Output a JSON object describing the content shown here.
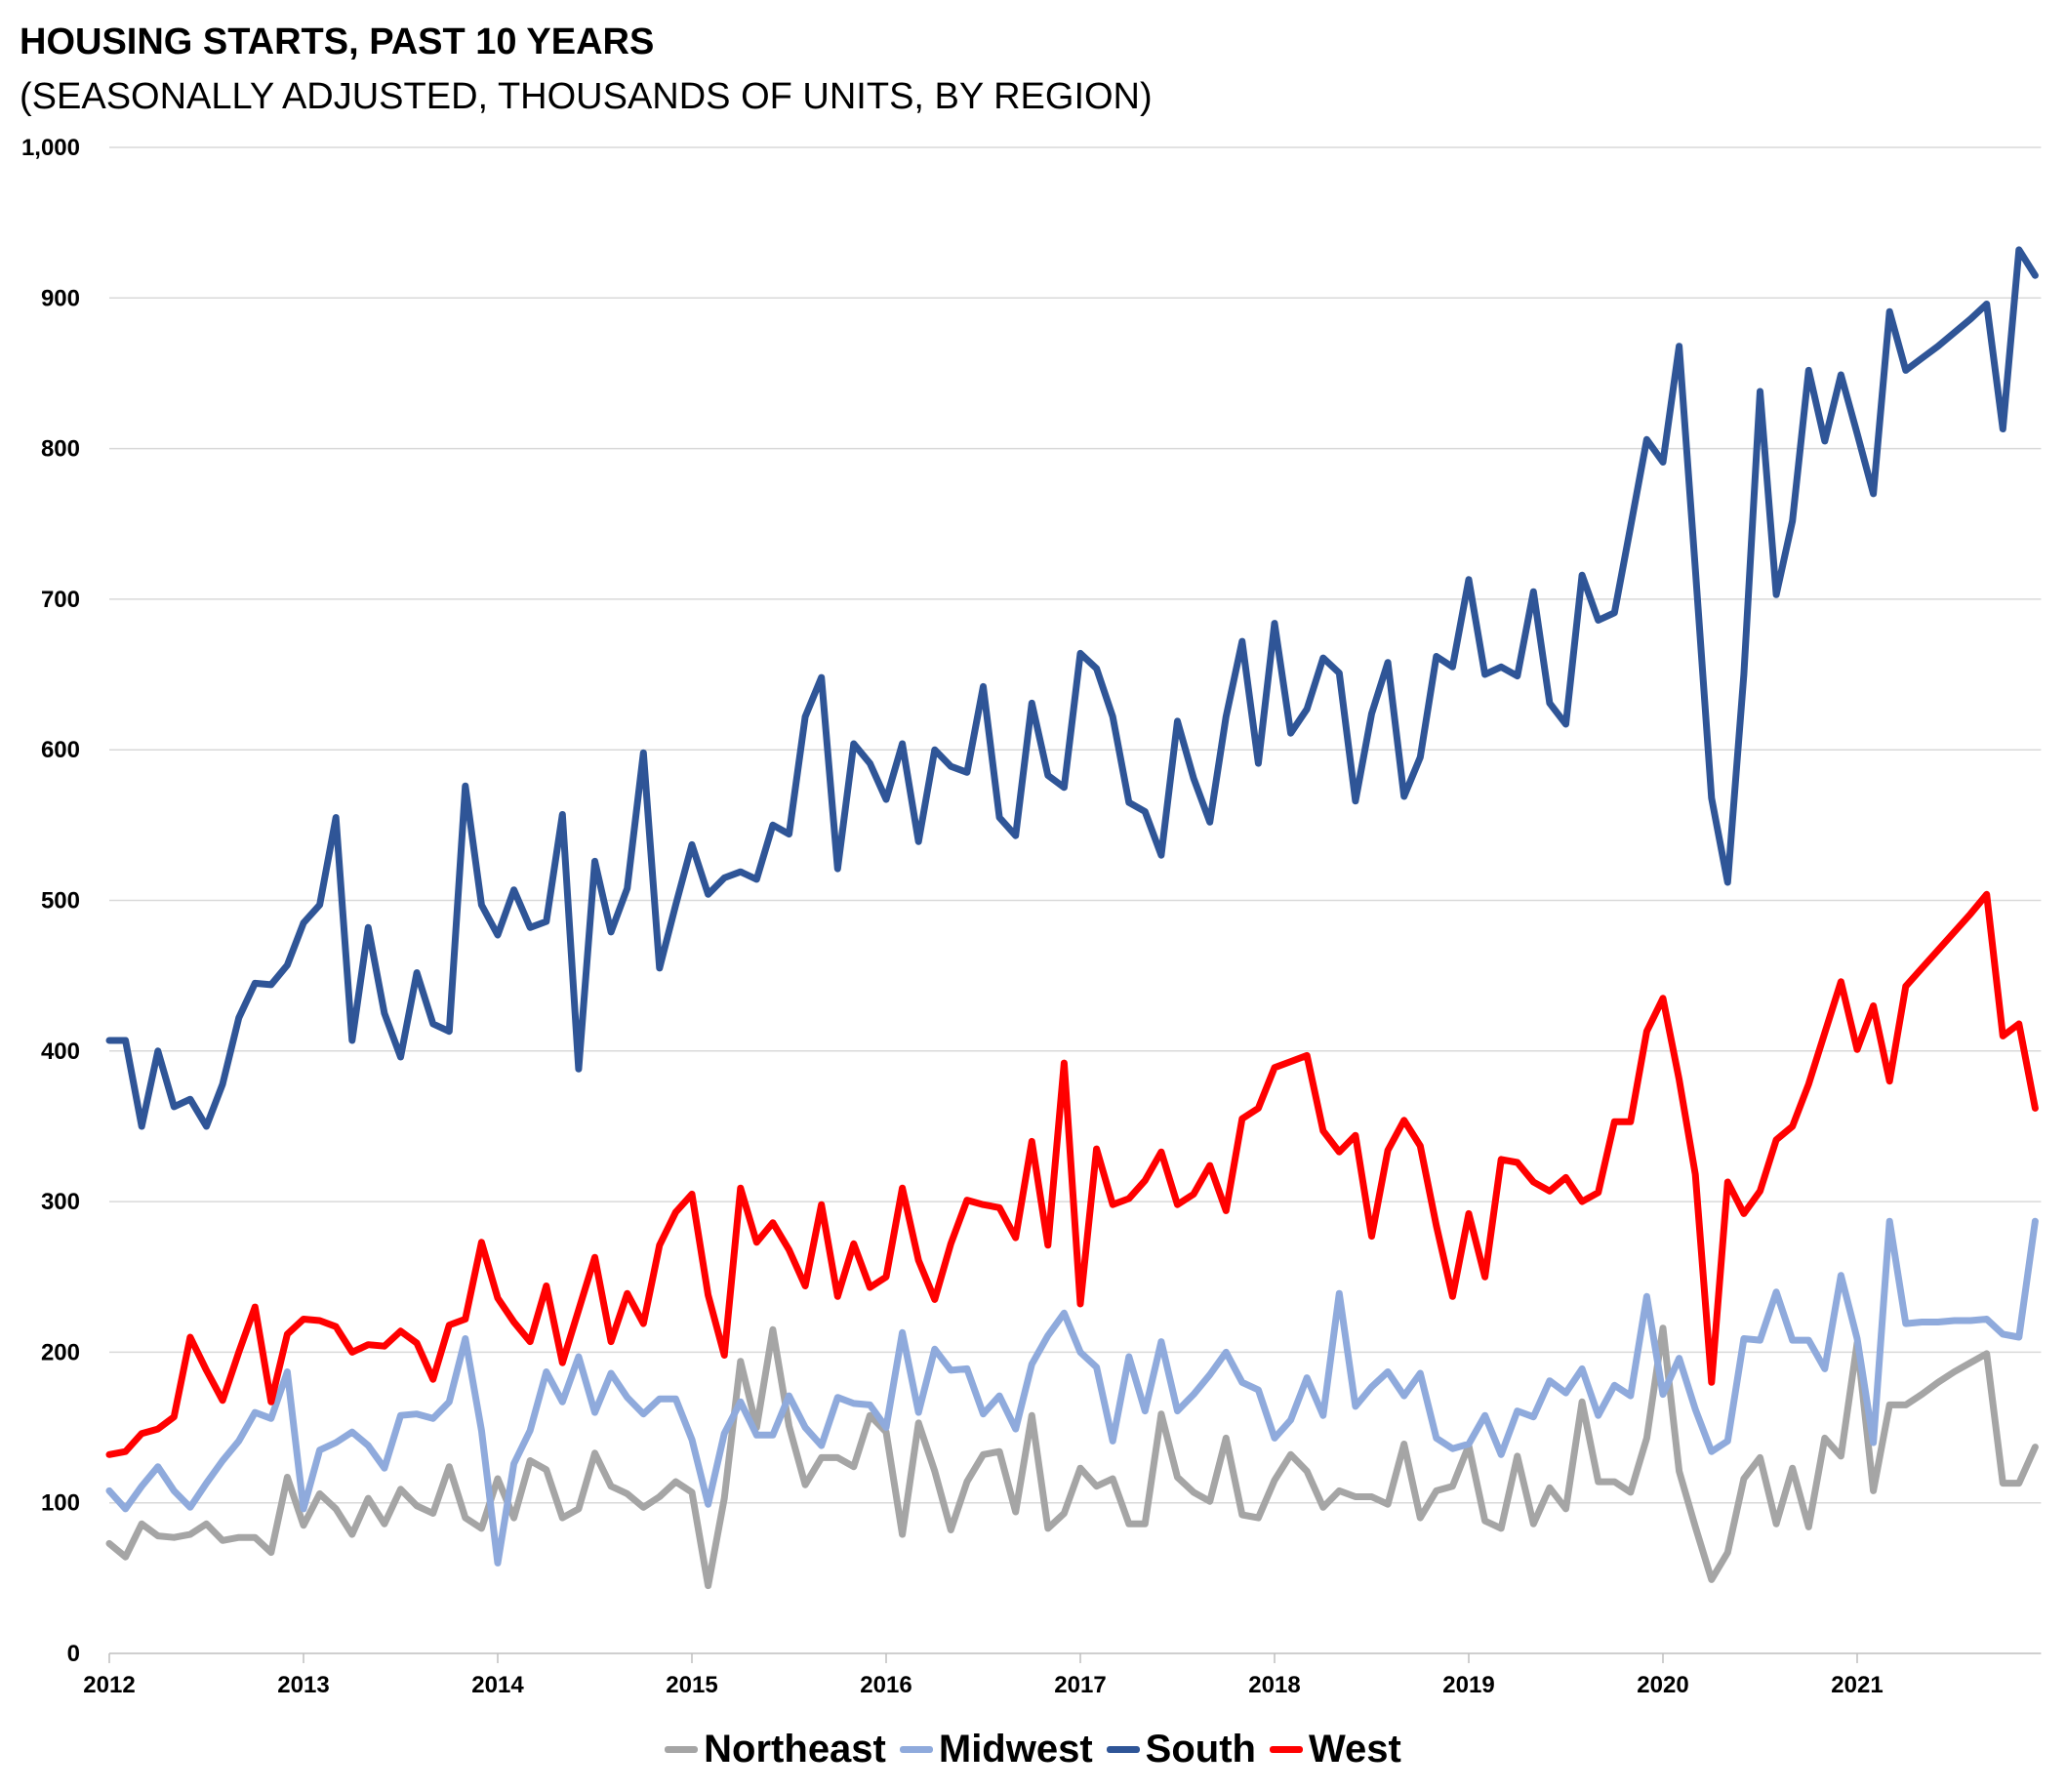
{
  "chart_data": {
    "type": "line",
    "title": "HOUSING STARTS, PAST 10 YEARS",
    "subtitle": "(SEASONALLY ADJUSTED, THOUSANDS OF UNITS, BY REGION)",
    "xlabel": "",
    "ylabel": "",
    "ylim": [
      0,
      1000
    ],
    "yticks": [
      "0",
      "100",
      "200",
      "300",
      "400",
      "500",
      "600",
      "700",
      "800",
      "900",
      "1,000"
    ],
    "xticks": [
      "2012",
      "2013",
      "2014",
      "2015",
      "2016",
      "2017",
      "2018",
      "2019",
      "2020",
      "2021"
    ],
    "x_start": "2012-01",
    "frequency": "monthly",
    "grid": true,
    "legend_position": "bottom",
    "series": [
      {
        "name": "Northeast",
        "color": "#A5A5A5",
        "values": [
          73,
          64,
          86,
          78,
          77,
          79,
          86,
          75,
          77,
          77,
          67,
          117,
          85,
          106,
          96,
          79,
          103,
          86,
          109,
          98,
          93,
          124,
          90,
          83,
          116,
          90,
          128,
          122,
          90,
          96,
          133,
          111,
          106,
          97,
          104,
          114,
          107,
          45,
          103,
          194,
          150,
          215,
          151,
          112,
          130,
          130,
          124,
          158,
          147,
          79,
          153,
          121,
          82,
          114,
          132,
          134,
          94,
          158,
          83,
          93,
          123,
          111,
          116,
          86,
          86,
          159,
          117,
          107,
          101,
          143,
          92,
          90,
          115,
          132,
          121,
          97,
          108,
          104,
          104,
          99,
          139,
          90,
          108,
          111,
          138,
          88,
          83,
          131,
          86,
          110,
          96,
          167,
          114,
          114,
          107,
          143,
          216,
          121,
          84,
          49,
          67,
          116,
          130,
          86,
          123,
          84,
          143,
          131,
          206,
          108,
          165,
          165,
          172,
          180,
          187,
          193,
          199,
          113,
          113,
          137
        ]
      },
      {
        "name": "Midwest",
        "color": "#8FAADC",
        "values": [
          108,
          96,
          111,
          124,
          108,
          97,
          113,
          128,
          141,
          160,
          156,
          187,
          96,
          135,
          140,
          147,
          138,
          123,
          158,
          159,
          156,
          167,
          209,
          148,
          60,
          126,
          148,
          187,
          167,
          197,
          160,
          186,
          170,
          159,
          169,
          169,
          142,
          99,
          146,
          167,
          145,
          145,
          171,
          150,
          138,
          170,
          166,
          165,
          150,
          213,
          160,
          202,
          188,
          189,
          159,
          171,
          149,
          192,
          211,
          226,
          200,
          190,
          141,
          197,
          161,
          207,
          161,
          172,
          185,
          200,
          180,
          175,
          143,
          155,
          183,
          158,
          239,
          164,
          177,
          187,
          171,
          186,
          143,
          136,
          139,
          158,
          132,
          161,
          157,
          181,
          173,
          189,
          158,
          178,
          171,
          237,
          172,
          196,
          162,
          134,
          141,
          209,
          208,
          240,
          208,
          208,
          189,
          251,
          209,
          140,
          287,
          219,
          220,
          220,
          221,
          221,
          222,
          212,
          210,
          287
        ]
      },
      {
        "name": "South",
        "color": "#2F5597",
        "values": [
          407,
          407,
          350,
          400,
          363,
          368,
          350,
          378,
          422,
          445,
          444,
          457,
          485,
          497,
          555,
          407,
          482,
          425,
          396,
          452,
          418,
          413,
          576,
          497,
          477,
          507,
          482,
          486,
          557,
          388,
          526,
          479,
          508,
          598,
          455,
          497,
          537,
          504,
          515,
          519,
          514,
          550,
          544,
          622,
          648,
          521,
          604,
          591,
          567,
          604,
          539,
          600,
          589,
          585,
          642,
          555,
          543,
          631,
          583,
          575,
          664,
          654,
          622,
          565,
          559,
          530,
          619,
          581,
          552,
          622,
          672,
          591,
          684,
          611,
          627,
          661,
          651,
          566,
          624,
          658,
          569,
          595,
          662,
          655,
          713,
          650,
          655,
          649,
          705,
          631,
          617,
          716,
          686,
          691,
          748,
          806,
          791,
          868,
          720,
          568,
          512,
          650,
          838,
          703,
          752,
          852,
          805,
          849,
          810,
          770,
          891,
          852,
          860,
          868,
          877,
          886,
          896,
          813,
          932,
          915
        ]
      },
      {
        "name": "West",
        "color": "#FF0000",
        "values": [
          132,
          134,
          146,
          149,
          157,
          210,
          188,
          168,
          200,
          230,
          167,
          212,
          222,
          221,
          217,
          200,
          205,
          204,
          214,
          206,
          182,
          218,
          222,
          273,
          236,
          220,
          207,
          244,
          193,
          228,
          263,
          207,
          239,
          219,
          271,
          293,
          305,
          238,
          198,
          309,
          273,
          286,
          268,
          244,
          298,
          237,
          272,
          243,
          250,
          309,
          261,
          235,
          272,
          301,
          298,
          296,
          276,
          340,
          271,
          392,
          232,
          335,
          298,
          302,
          314,
          333,
          298,
          305,
          324,
          294,
          355,
          362,
          389,
          393,
          397,
          347,
          333,
          344,
          277,
          334,
          354,
          337,
          284,
          237,
          292,
          250,
          328,
          326,
          313,
          307,
          316,
          300,
          306,
          353,
          353,
          413,
          435,
          381,
          318,
          180,
          313,
          292,
          307,
          341,
          350,
          378,
          412,
          446,
          401,
          430,
          380,
          443,
          455,
          467,
          479,
          491,
          504,
          410,
          418,
          362
        ]
      }
    ]
  }
}
